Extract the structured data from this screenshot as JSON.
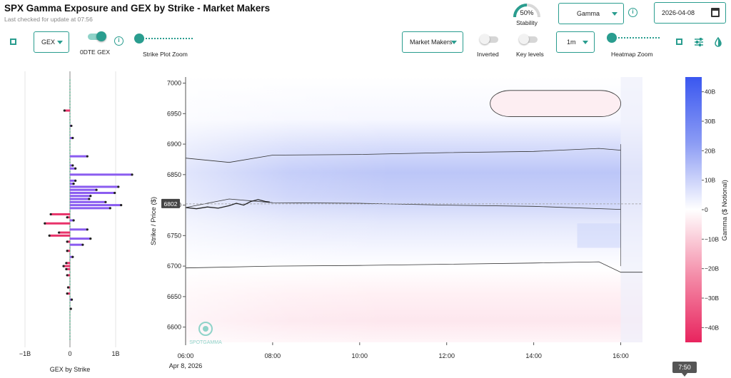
{
  "header": {
    "title": "SPX Gamma Exposure and GEX by Strike - Market Makers",
    "subtitle": "Last checked for update at 07:56"
  },
  "stability": {
    "value": "50%",
    "label": "Stability",
    "fraction": 0.5
  },
  "controls": {
    "greek_select": "Gamma",
    "date_input": "2026-04-08",
    "gex_select": "GEX",
    "odte_label": "0DTE GEX",
    "odte_on": true,
    "strike_zoom_label": "Strike Plot Zoom",
    "participant_select": "Market Makers",
    "inverted_label": "Inverted",
    "inverted_on": false,
    "key_levels_label": "Key levels",
    "key_levels_on": false,
    "interval_select": "1m",
    "heatmap_zoom_label": "Heatmap Zoom"
  },
  "icons": {
    "expand_left": "expand-icon",
    "info_odte": "info-icon",
    "info_greek": "info-icon",
    "calendar": "calendar-icon",
    "expand_right": "expand-icon",
    "settings": "sliders-icon",
    "theme": "contrast-icon"
  },
  "colors": {
    "accent": "#2a9d8f",
    "positive_gamma": "#3f5cf0",
    "negative_gamma": "#e8336a",
    "bar_positive": "#8a5cf0",
    "bar_negative": "#e8336a"
  },
  "gex_by_strike": {
    "xlabel": "GEX by Strike",
    "x_ticks": [
      "−1B",
      "0",
      "1B"
    ],
    "xlim": [
      -1.0,
      1.4
    ],
    "bars": [
      {
        "strike": 6955,
        "value": -0.12
      },
      {
        "strike": 6930,
        "value": 0.03
      },
      {
        "strike": 6910,
        "value": 0.06
      },
      {
        "strike": 6880,
        "value": 0.38
      },
      {
        "strike": 6865,
        "value": 0.06
      },
      {
        "strike": 6860,
        "value": 0.12
      },
      {
        "strike": 6850,
        "value": 1.36
      },
      {
        "strike": 6840,
        "value": 0.12
      },
      {
        "strike": 6835,
        "value": 0.08
      },
      {
        "strike": 6830,
        "value": 1.06
      },
      {
        "strike": 6825,
        "value": 0.58
      },
      {
        "strike": 6820,
        "value": 0.98
      },
      {
        "strike": 6815,
        "value": 0.45
      },
      {
        "strike": 6810,
        "value": 0.42
      },
      {
        "strike": 6805,
        "value": 0.78
      },
      {
        "strike": 6800,
        "value": 1.12
      },
      {
        "strike": 6795,
        "value": 0.88
      },
      {
        "strike": 6785,
        "value": -0.42
      },
      {
        "strike": 6780,
        "value": -0.06
      },
      {
        "strike": 6775,
        "value": 0.08
      },
      {
        "strike": 6770,
        "value": -0.55
      },
      {
        "strike": 6760,
        "value": 0.38
      },
      {
        "strike": 6755,
        "value": -0.24
      },
      {
        "strike": 6750,
        "value": -0.45
      },
      {
        "strike": 6745,
        "value": 0.45
      },
      {
        "strike": 6740,
        "value": -0.06
      },
      {
        "strike": 6735,
        "value": 0.28
      },
      {
        "strike": 6725,
        "value": -0.06
      },
      {
        "strike": 6715,
        "value": 0.06
      },
      {
        "strike": 6705,
        "value": -0.08
      },
      {
        "strike": 6700,
        "value": -0.14
      },
      {
        "strike": 6695,
        "value": -0.08
      },
      {
        "strike": 6685,
        "value": -0.06
      },
      {
        "strike": 6665,
        "value": -0.04
      },
      {
        "strike": 6655,
        "value": -0.06
      },
      {
        "strike": 6645,
        "value": 0.04
      },
      {
        "strike": 6630,
        "value": 0.02
      }
    ]
  },
  "chart_data": {
    "type": "heatmap",
    "xlabel": "",
    "x_ticks": [
      "06:00",
      "08:00",
      "10:00",
      "12:00",
      "14:00",
      "16:00"
    ],
    "x_date_label": "Apr 8, 2026",
    "xlim": [
      "06:00",
      "16:30"
    ],
    "ylabel": "Strike / Price ($)",
    "y_ticks": [
      6600,
      6650,
      6700,
      6750,
      6800,
      6850,
      6900,
      6950,
      7000
    ],
    "ylim": [
      6575,
      7010
    ],
    "current_price": 6802,
    "current_price_label": "6802",
    "colorbar": {
      "label": "Gamma ($ Notional)",
      "ticks": [
        "40B",
        "30B",
        "20B",
        "10B",
        "0",
        "−10B",
        "−20B",
        "−30B",
        "−40B"
      ],
      "range": [
        -45,
        45
      ]
    },
    "price_path": {
      "times": [
        "06:00",
        "06:15",
        "06:30",
        "06:45",
        "07:00",
        "07:10",
        "07:20",
        "07:30",
        "07:40",
        "07:50",
        "07:56"
      ],
      "values": [
        6796,
        6794,
        6797,
        6795,
        6799,
        6803,
        6800,
        6806,
        6809,
        6806,
        6805
      ]
    },
    "zero_gamma_upper": {
      "times": [
        "06:00",
        "07:00",
        "08:00",
        "10:00",
        "12:00",
        "14:00",
        "15:30",
        "16:00"
      ],
      "values": [
        6877,
        6870,
        6882,
        6883,
        6886,
        6888,
        6893,
        6890
      ]
    },
    "zero_gamma_lower_a": {
      "times": [
        "06:00",
        "07:00",
        "08:00",
        "10:00",
        "12:00",
        "14:00",
        "16:00"
      ],
      "values": [
        6796,
        6810,
        6804,
        6803,
        6800,
        6798,
        6793
      ]
    },
    "zero_gamma_lower_b": {
      "times": [
        "06:00",
        "08:00",
        "10:00",
        "12:00",
        "14:00",
        "15:30",
        "16:00",
        "16:30"
      ],
      "values": [
        6697,
        6700,
        6701,
        6703,
        6705,
        6707,
        6690,
        6690
      ]
    },
    "negative_zone_top": {
      "start": "13:00",
      "end": "16:00",
      "low": 6945,
      "high": 6988
    },
    "watermark": "SPOTGAMMA",
    "hover_time": "7:50"
  }
}
